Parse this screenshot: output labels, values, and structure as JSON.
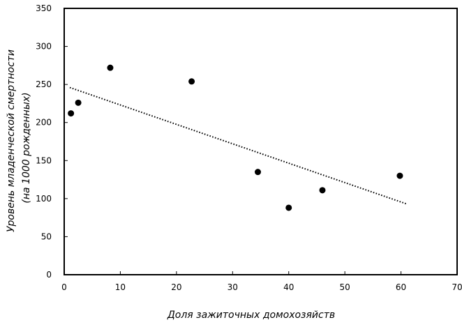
{
  "chart_data": {
    "type": "scatter",
    "title": "",
    "xlabel": "Доля зажиточных домохозяйств",
    "ylabel_line1": "Уровень младенческой смертности",
    "ylabel_line2": "(на 1000 рожденных)",
    "xlim": [
      0,
      70
    ],
    "ylim": [
      0,
      350
    ],
    "xticks": [
      0,
      10,
      20,
      30,
      40,
      50,
      60,
      70
    ],
    "yticks": [
      0,
      50,
      100,
      150,
      200,
      250,
      300,
      350
    ],
    "grid": false,
    "legend": false,
    "points": [
      {
        "x": 1.2,
        "y": 212
      },
      {
        "x": 2.5,
        "y": 226
      },
      {
        "x": 8.2,
        "y": 272
      },
      {
        "x": 22.7,
        "y": 254
      },
      {
        "x": 34.5,
        "y": 135
      },
      {
        "x": 40.0,
        "y": 88
      },
      {
        "x": 46.0,
        "y": 111
      },
      {
        "x": 59.8,
        "y": 130
      }
    ],
    "trendline": {
      "style": "dotted",
      "x": [
        1,
        61
      ],
      "y": [
        246,
        93
      ]
    }
  }
}
